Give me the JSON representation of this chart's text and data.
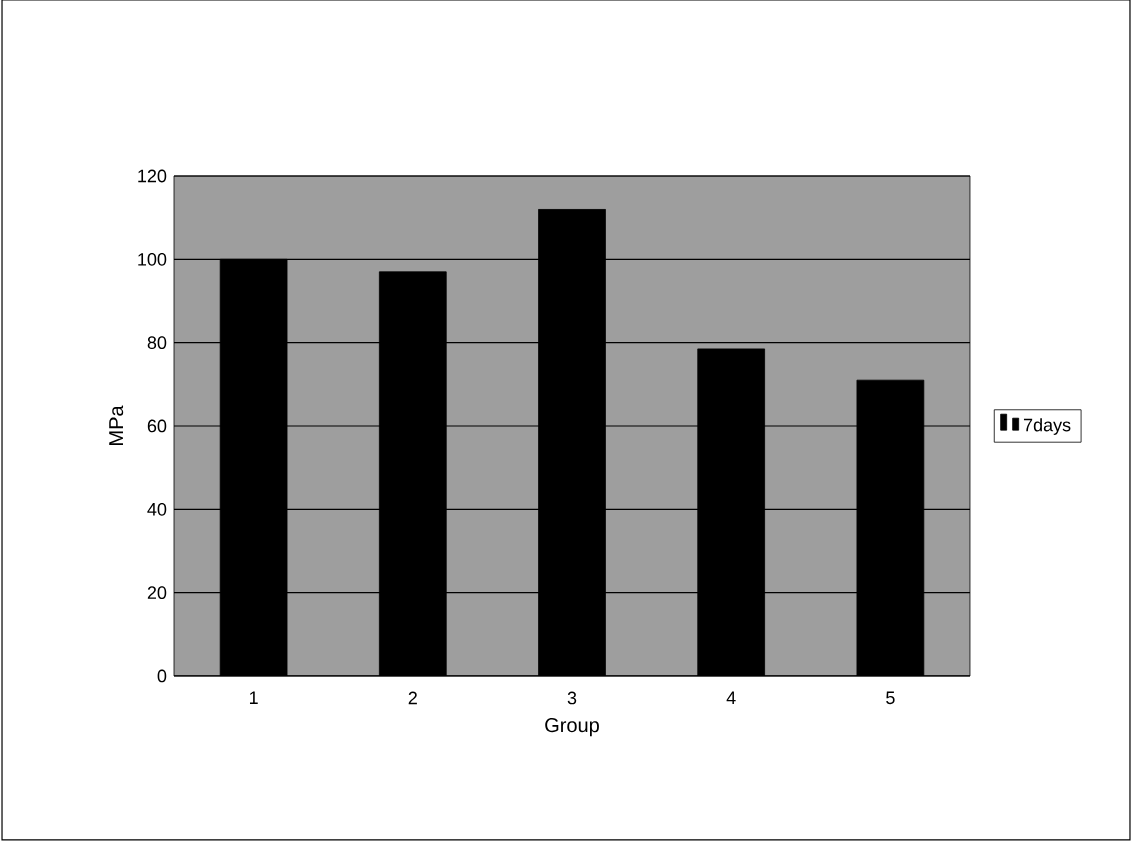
{
  "chart_data": {
    "type": "bar",
    "categories": [
      "1",
      "2",
      "3",
      "4",
      "5"
    ],
    "xlabel": "Group",
    "ylabel": "MPa",
    "series": [
      {
        "name": "7days",
        "color": "#000000",
        "values": [
          100,
          97,
          112,
          78.5,
          71
        ]
      }
    ],
    "ylim": [
      0,
      120
    ],
    "yticks": [
      0,
      20,
      40,
      60,
      80,
      100,
      120
    ],
    "grid": "y",
    "legend": "right"
  }
}
